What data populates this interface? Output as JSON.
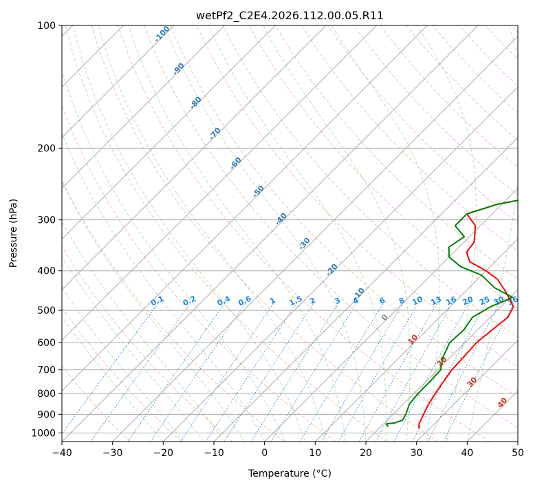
{
  "chart_data": {
    "type": "line",
    "title": "wetPf2_C2E4.2026.112.00.05.R11",
    "xlabel": "Temperature (°C)",
    "ylabel": "Pressure (hPa)",
    "xlim": [
      -40,
      50
    ],
    "ylim": [
      1050,
      100
    ],
    "x_ticks": [
      -40,
      -30,
      -20,
      -10,
      0,
      10,
      20,
      30,
      40,
      50
    ],
    "y_ticks": [
      100,
      200,
      300,
      400,
      500,
      600,
      700,
      800,
      900,
      1000
    ],
    "x_tick_labels": [
      "−40",
      "−30",
      "−20",
      "−10",
      "0",
      "10",
      "20",
      "30",
      "40",
      "50"
    ],
    "y_tick_labels": [
      "100",
      "200",
      "300",
      "400",
      "500",
      "600",
      "700",
      "800",
      "900",
      "1000"
    ],
    "dry_adiabat_labels": [
      "-100",
      "-90",
      "-80",
      "-70",
      "-60",
      "-50",
      "-40",
      "-30",
      "-20",
      "-10",
      "0",
      "10",
      "20",
      "30",
      "40"
    ],
    "mixing_ratio_labels": [
      "0.1",
      "0.2",
      "0.4",
      "0.6",
      "1",
      "1.5",
      "2",
      "3",
      "4",
      "6",
      "8",
      "10",
      "13",
      "16",
      "20",
      "25",
      "30",
      "36"
    ],
    "series": [
      {
        "name": "Temperature",
        "color": "#ff0000",
        "points": [
          [
            27.9,
            975
          ],
          [
            27.0,
            950
          ],
          [
            26.0,
            900
          ],
          [
            25.0,
            850
          ],
          [
            24.2,
            800
          ],
          [
            23.5,
            750
          ],
          [
            22.8,
            700
          ],
          [
            22.6,
            650
          ],
          [
            22.3,
            600
          ],
          [
            23.0,
            550
          ],
          [
            23.5,
            520
          ],
          [
            22.5,
            490
          ],
          [
            18.0,
            450
          ],
          [
            14.0,
            420
          ],
          [
            10.0,
            400
          ],
          [
            5.0,
            380
          ],
          [
            2.5,
            360
          ],
          [
            2.0,
            340
          ],
          [
            -1.0,
            310
          ],
          [
            -5.0,
            290
          ],
          [
            -1.0,
            275
          ],
          [
            10.0,
            255
          ],
          [
            11.0,
            245
          ],
          [
            8.0,
            230
          ],
          [
            2.0,
            210
          ],
          [
            -3.0,
            190
          ],
          [
            -5.0,
            178
          ],
          [
            -9.0,
            160
          ],
          [
            -13.0,
            140
          ],
          [
            -17.0,
            125
          ],
          [
            -18.0,
            115
          ],
          [
            -16.0,
            108
          ],
          [
            -11.0,
            103
          ],
          [
            -8.0,
            100
          ]
        ]
      },
      {
        "name": "Dewpoint",
        "color": "#008000",
        "points": [
          [
            21.5,
            965
          ],
          [
            20.5,
            950
          ],
          [
            22.0,
            945
          ],
          [
            23.0,
            930
          ],
          [
            22.5,
            900
          ],
          [
            21.2,
            850
          ],
          [
            20.8,
            800
          ],
          [
            20.8,
            750
          ],
          [
            20.6,
            700
          ],
          [
            18.5,
            650
          ],
          [
            17.0,
            600
          ],
          [
            17.3,
            560
          ],
          [
            16.5,
            520
          ],
          [
            18.0,
            490
          ],
          [
            20.5,
            465
          ],
          [
            15.0,
            440
          ],
          [
            10.0,
            410
          ],
          [
            4.0,
            390
          ],
          [
            0.0,
            370
          ],
          [
            -2.0,
            350
          ],
          [
            -1.0,
            330
          ],
          [
            -5.0,
            310
          ],
          [
            -5.0,
            290
          ],
          [
            -1.0,
            275
          ],
          [
            10.0,
            255
          ],
          [
            11.0,
            245
          ],
          [
            8.0,
            230
          ],
          [
            2.0,
            210
          ],
          [
            -3.0,
            190
          ],
          [
            -5.5,
            178
          ],
          [
            -9.0,
            160
          ],
          [
            -13.0,
            140
          ],
          [
            -17.0,
            125
          ],
          [
            -18.0,
            115
          ],
          [
            -17.5,
            105
          ],
          [
            -19.0,
            100
          ]
        ]
      }
    ]
  }
}
